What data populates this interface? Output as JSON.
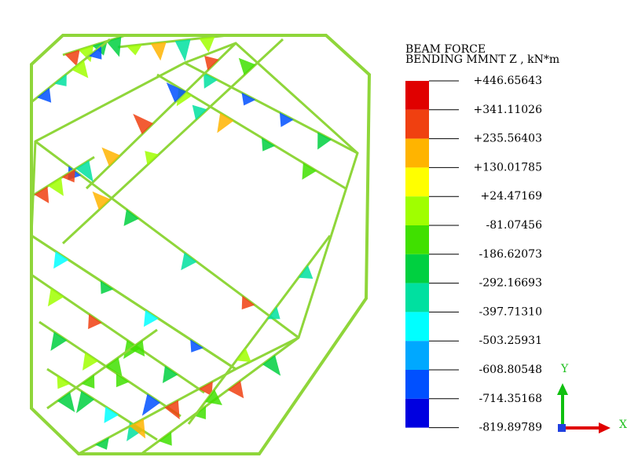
{
  "legend": {
    "title": [
      "BEAM FORCE",
      "BENDING MMNT Z , kN*m"
    ],
    "labels": [
      "+446.65643",
      "+341.11026",
      "+235.56403",
      "+130.01785",
      "+24.47169",
      "-81.07456",
      "-186.62073",
      "-292.16693",
      "-397.71310",
      "-503.25931",
      "-608.80548",
      "-714.35168",
      "-819.89789"
    ],
    "colors": [
      "#e00000",
      "#f04010",
      "#ffb400",
      "#ffff00",
      "#a0ff00",
      "#40e000",
      "#00d040",
      "#00e0a0",
      "#00ffff",
      "#00a8ff",
      "#0050ff",
      "#0000e0"
    ]
  },
  "axes": {
    "y": "Y",
    "x": "X"
  }
}
